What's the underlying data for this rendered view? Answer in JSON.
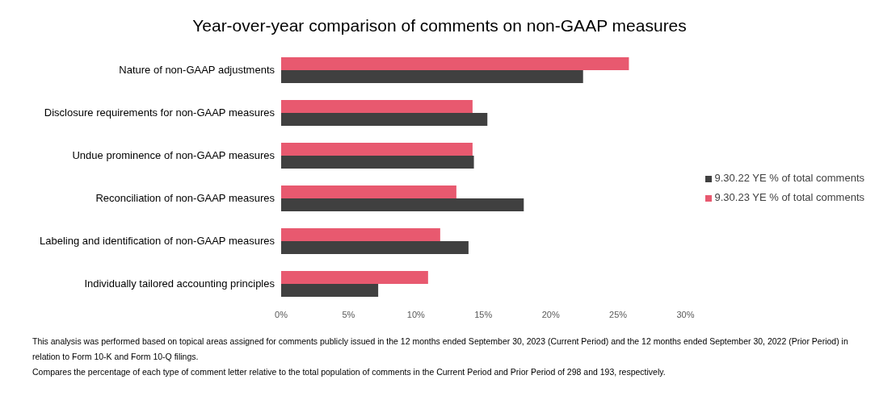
{
  "chart_data": {
    "type": "bar",
    "orientation": "horizontal",
    "title": "Year-over-year comparison of comments on non-GAAP measures",
    "categories": [
      "Nature of non-GAAP adjustments",
      "Disclosure requirements for non-GAAP measures",
      "Undue prominence of non-GAAP measures",
      "Reconciliation of non-GAAP measures",
      "Labeling and identification of non-GAAP measures",
      "Individually tailored accounting principles"
    ],
    "series": [
      {
        "name": "9.30.23 YE % of total comments",
        "color": "#e8596f",
        "values": [
          25.8,
          14.2,
          14.2,
          13.0,
          11.8,
          10.9
        ]
      },
      {
        "name": "9.30.22 YE % of total comments",
        "color": "#404040",
        "values": [
          22.4,
          15.3,
          14.3,
          18.0,
          13.9,
          7.2
        ]
      }
    ],
    "xlim": [
      0,
      30
    ],
    "xticks": [
      {
        "value": 0,
        "label": "0%"
      },
      {
        "value": 5,
        "label": "5%"
      },
      {
        "value": 10,
        "label": "10%"
      },
      {
        "value": 15,
        "label": "15%"
      },
      {
        "value": 20,
        "label": "20%"
      },
      {
        "value": 25,
        "label": "25%"
      },
      {
        "value": 30,
        "label": "30%"
      }
    ],
    "legend": "right",
    "grid": false,
    "annotations": [
      "This analysis was performed based on topical areas assigned for comments publicly issued in the 12 months ended September 30, 2023 (Current Period) and the 12 months ended September 30, 2022 (Prior Period) in relation to Form 10-K and Form 10-Q filings.",
      "Compares the percentage of each type of comment letter relative to the total population of comments in the Current Period and Prior Period of 298 and 193, respectively."
    ]
  }
}
